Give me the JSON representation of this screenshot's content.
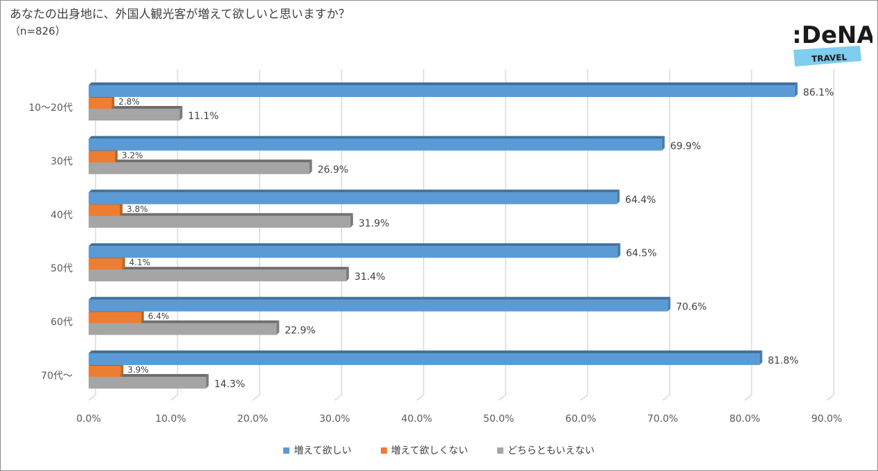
{
  "title": "あなたの出身地に、外国人観光客が増えて欲しいと思いますか？",
  "subtitle": "（n=826）",
  "logo": {
    "brand": "DeNA",
    "sub": "TRAVEL"
  },
  "chart_data": {
    "type": "bar",
    "orientation": "horizontal",
    "categories": [
      "10～20代",
      "30代",
      "40代",
      "50代",
      "60代",
      "70代～"
    ],
    "series": [
      {
        "name": "増えて欲しい",
        "color": "#5B9BD5",
        "values": [
          86.1,
          69.9,
          64.4,
          64.5,
          70.6,
          81.8
        ]
      },
      {
        "name": "増えて欲しくない",
        "color": "#ED7D31",
        "values": [
          2.8,
          3.2,
          3.8,
          4.1,
          6.4,
          3.9
        ]
      },
      {
        "name": "どちらともいえない",
        "color": "#A5A5A5",
        "values": [
          11.1,
          26.9,
          31.9,
          31.4,
          22.9,
          14.3
        ]
      }
    ],
    "xlim": [
      0,
      90
    ],
    "xticks": [
      0,
      10,
      20,
      30,
      40,
      50,
      60,
      70,
      80,
      90
    ],
    "xtick_labels": [
      "0.0%",
      "10.0%",
      "20.0%",
      "30.0%",
      "40.0%",
      "50.0%",
      "60.0%",
      "70.0%",
      "80.0%",
      "90.0%"
    ],
    "grid": true,
    "legend": "bottom"
  }
}
